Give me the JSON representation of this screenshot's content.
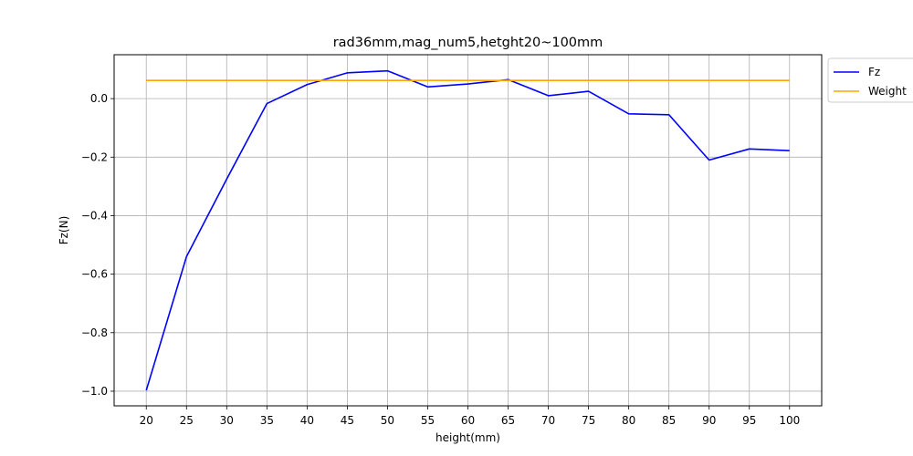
{
  "chart_data": {
    "type": "line",
    "title": "rad36mm,mag_num5,hetght20~100mm",
    "xlabel": "height(mm)",
    "ylabel": "Fz(N)",
    "x": [
      20,
      25,
      30,
      35,
      40,
      45,
      50,
      55,
      60,
      65,
      70,
      75,
      80,
      85,
      90,
      95,
      100
    ],
    "xlim": [
      16,
      104
    ],
    "ylim": [
      -1.05,
      0.15
    ],
    "xticks": [
      20,
      25,
      30,
      35,
      40,
      45,
      50,
      55,
      60,
      65,
      70,
      75,
      80,
      85,
      90,
      95,
      100
    ],
    "yticks": [
      {
        "value": -1.0,
        "label": "−1.0"
      },
      {
        "value": -0.8,
        "label": "−0.8"
      },
      {
        "value": -0.6,
        "label": "−0.6"
      },
      {
        "value": -0.4,
        "label": "−0.4"
      },
      {
        "value": -0.2,
        "label": "−0.2"
      },
      {
        "value": 0.0,
        "label": "0.0"
      }
    ],
    "grid": true,
    "legend_position": "outside-top-right",
    "series": [
      {
        "name": "Fz",
        "color": "#0000ff",
        "values": [
          -0.997,
          -0.54,
          -0.275,
          -0.017,
          0.048,
          0.088,
          0.095,
          0.04,
          0.05,
          0.065,
          0.01,
          0.025,
          -0.052,
          -0.055,
          -0.21,
          -0.172,
          -0.178
        ]
      },
      {
        "name": "Weight",
        "color": "#ffa500",
        "values": [
          0.062,
          0.062,
          0.062,
          0.062,
          0.062,
          0.062,
          0.062,
          0.062,
          0.062,
          0.062,
          0.062,
          0.062,
          0.062,
          0.062,
          0.062,
          0.062,
          0.062
        ]
      }
    ]
  }
}
